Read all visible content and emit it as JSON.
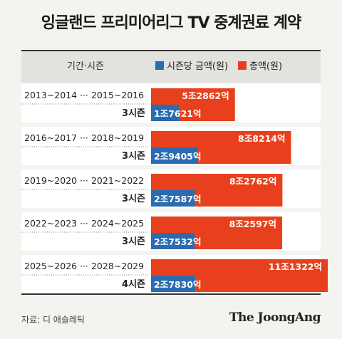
{
  "title": "잉글랜드 프리미어리그 TV 중계권료 계약",
  "source": "자료: 디 애슬레틱",
  "brand": "The JoongAng",
  "colors": {
    "per_season": "#2b6cb0",
    "total": "#e8401c",
    "text_per_season": "#ffffff",
    "text_total": "#ffffff",
    "row_bg": "#ffffff"
  },
  "chart_data": {
    "type": "bar",
    "header_period": "기간·시즌",
    "series": [
      {
        "name": "시즌당 금액(원)",
        "values": [
          17621,
          29405,
          27587,
          27532,
          27830
        ],
        "labels": [
          "1조7621억",
          "2조9405억",
          "2조7587억",
          "2조7532억",
          "2조7830억"
        ]
      },
      {
        "name": "총액(원)",
        "values": [
          52862,
          88214,
          82762,
          82597,
          111322
        ],
        "labels": [
          "5조2862억",
          "8조8214억",
          "8조2762억",
          "8조2597억",
          "11조1322억"
        ]
      }
    ],
    "rows": [
      {
        "period": "2013~2014 ··· 2015~2016",
        "seasons": "3시즌"
      },
      {
        "period": "2016~2017 ··· 2018~2019",
        "seasons": "3시즌"
      },
      {
        "period": "2019~2020 ··· 2021~2022",
        "seasons": "3시즌"
      },
      {
        "period": "2022~2023 ··· 2024~2025",
        "seasons": "3시즌"
      },
      {
        "period": "2025~2026 ··· 2028~2029",
        "seasons": "4시즌"
      }
    ]
  }
}
